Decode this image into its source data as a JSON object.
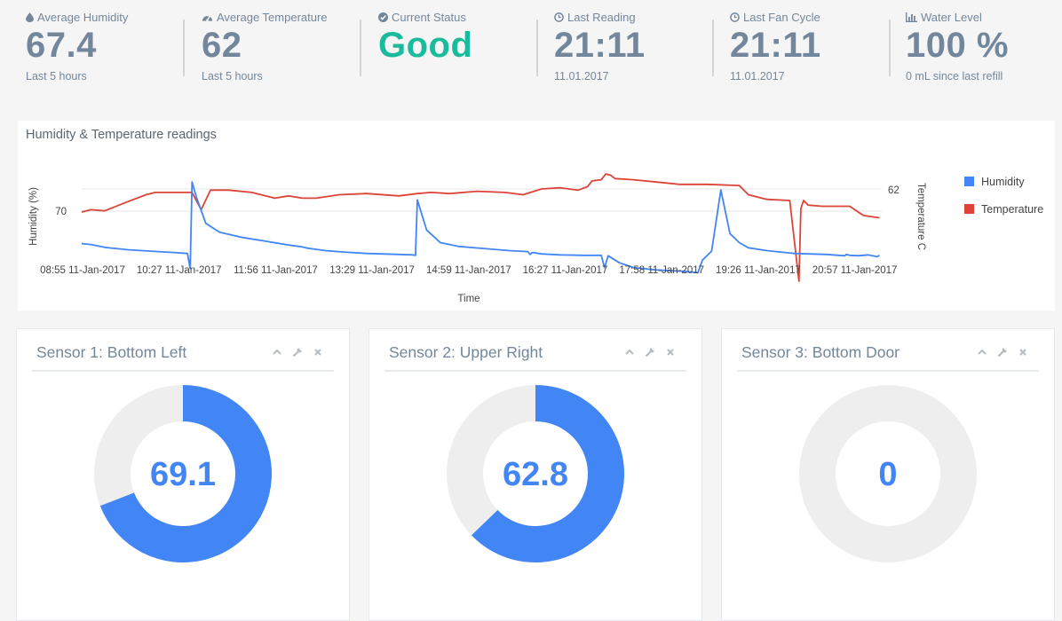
{
  "stats": [
    {
      "label": "Average Humidity",
      "icon": "droplet-icon",
      "value": "67.4",
      "sub": "Last 5 hours"
    },
    {
      "label": "Average Temperature",
      "icon": "gauge-icon",
      "value": "62",
      "sub": "Last 5 hours"
    },
    {
      "label": "Current Status",
      "icon": "check-circle-icon",
      "value": "Good",
      "sub": ""
    },
    {
      "label": "Last Reading",
      "icon": "clock-icon",
      "value": "21:11",
      "sub": "11.01.2017"
    },
    {
      "label": "Last Fan Cycle",
      "icon": "clock-icon",
      "value": "21:11",
      "sub": "11.01.2017"
    },
    {
      "label": "Water Level",
      "icon": "bar-chart-icon",
      "value": "100 %",
      "sub": "0 mL since last refill"
    }
  ],
  "colors": {
    "text": "#73879c",
    "good": "#1abb9c",
    "humidity": "#4285f4",
    "temperature": "#db4437",
    "track": "#eeeeee"
  },
  "chart_data": {
    "type": "line",
    "title": "Humidity & Temperature readings",
    "xlabel": "Time",
    "ylabel_left": "Humidity (%)",
    "ylabel_right": "Temperature C",
    "left_tick": "70",
    "right_tick": "62",
    "x_ticks": [
      "08:55 11-Jan-2017",
      "10:27 11-Jan-2017",
      "11:56 11-Jan-2017",
      "13:29 11-Jan-2017",
      "14:59 11-Jan-2017",
      "16:27 11-Jan-2017",
      "17:58 11-Jan-2017",
      "19:26 11-Jan-2017",
      "20:57 11-Jan-2017"
    ],
    "legend_position": "right",
    "series": [
      {
        "name": "Humidity",
        "color": "#4285f4",
        "axis": "left",
        "x": [
          0,
          0.2,
          0.5,
          1.0,
          1.5,
          2.0,
          2.3,
          2.36,
          2.4,
          2.5,
          2.7,
          3.0,
          3.5,
          4.0,
          4.5,
          4.8,
          4.83,
          4.87,
          5.0,
          5.3,
          5.7,
          6.2,
          6.9,
          7.2,
          7.26,
          7.3,
          7.5,
          7.8,
          8.2,
          8.8,
          9.3,
          9.7,
          9.75,
          9.8,
          10.0,
          10.4,
          10.9,
          11.3,
          11.37,
          11.45,
          11.7,
          12.0,
          12.5,
          13.1,
          13.3,
          13.4,
          13.5,
          13.7,
          13.9,
          14.1,
          14.3,
          14.5,
          14.9,
          15.5,
          16.2,
          16.6,
          16.63,
          16.7,
          16.9,
          17.1,
          17.3,
          17.35
        ],
        "values": [
          63.1,
          62.9,
          62.3,
          61.8,
          61.5,
          61.2,
          61.0,
          57.8,
          76.2,
          72.8,
          67.4,
          65.5,
          64.4,
          63.6,
          62.8,
          62.4,
          62.3,
          62.2,
          62.0,
          61.6,
          61.3,
          61.0,
          60.8,
          60.7,
          60.6,
          72.4,
          66.0,
          63.3,
          62.5,
          62.0,
          61.6,
          61.4,
          60.8,
          61.2,
          60.9,
          60.7,
          60.6,
          60.6,
          58.0,
          60.5,
          59.0,
          58.0,
          57.5,
          57.2,
          57.0,
          56.9,
          59.6,
          61.5,
          74.5,
          65.2,
          63.3,
          62.2,
          61.6,
          61.0,
          60.8,
          60.5,
          60.8,
          60.6,
          60.5,
          60.7,
          60.3,
          60.6
        ]
      },
      {
        "name": "Temperature",
        "color": "#db4437",
        "axis": "right",
        "x": [
          0,
          0.2,
          0.5,
          1.0,
          1.4,
          1.6,
          2.4,
          2.6,
          2.8,
          3.2,
          3.7,
          4.2,
          4.5,
          4.8,
          5.1,
          5.6,
          6.2,
          6.9,
          7.3,
          7.6,
          8.0,
          8.6,
          9.2,
          9.6,
          10.0,
          10.4,
          10.8,
          11.0,
          11.1,
          11.3,
          11.4,
          11.5,
          11.6,
          12.0,
          12.5,
          13.0,
          13.6,
          14.3,
          14.5,
          14.9,
          15.4,
          15.6,
          15.64,
          15.7,
          15.8,
          16.1,
          16.7,
          17.0,
          17.35
        ],
        "values": [
          60.0,
          60.2,
          60.1,
          60.9,
          61.5,
          61.7,
          61.7,
          60.2,
          61.9,
          61.9,
          61.7,
          61.2,
          61.4,
          61.2,
          61.2,
          61.5,
          61.6,
          61.4,
          61.6,
          61.7,
          61.6,
          61.8,
          61.7,
          61.5,
          62.0,
          62.1,
          61.9,
          62.2,
          62.7,
          62.8,
          63.3,
          63.2,
          62.9,
          62.8,
          62.6,
          62.4,
          62.4,
          62.3,
          61.5,
          61.1,
          61.0,
          54.0,
          60.3,
          61.0,
          60.6,
          60.5,
          60.5,
          59.7,
          59.5
        ]
      }
    ]
  },
  "sensors": [
    {
      "title": "Sensor 1: Bottom Left",
      "value": "69.1",
      "fraction": 0.691
    },
    {
      "title": "Sensor 2: Upper Right",
      "value": "62.8",
      "fraction": 0.628
    },
    {
      "title": "Sensor 3: Bottom Door",
      "value": "0",
      "fraction": 0.0
    }
  ]
}
